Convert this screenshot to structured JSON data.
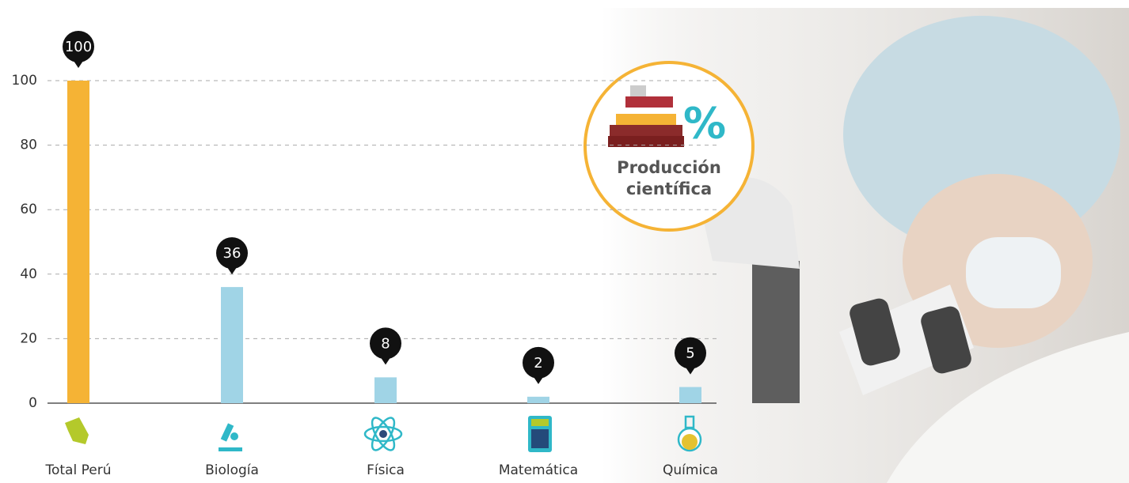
{
  "chart_data": {
    "type": "bar",
    "categories": [
      "Total Perú",
      "Biología",
      "Física",
      "Matemática",
      "Química"
    ],
    "values": [
      100,
      36,
      8,
      2,
      5
    ],
    "colors": [
      "#f5b335",
      "#a0d4e6",
      "#a0d4e6",
      "#a0d4e6",
      "#a0d4e6"
    ],
    "ylim": [
      0,
      100
    ],
    "yticks": [
      0,
      20,
      40,
      60,
      80,
      100
    ],
    "grid": true
  },
  "badge": {
    "symbol": "%",
    "title_lines": [
      "Producción",
      "científica"
    ]
  }
}
